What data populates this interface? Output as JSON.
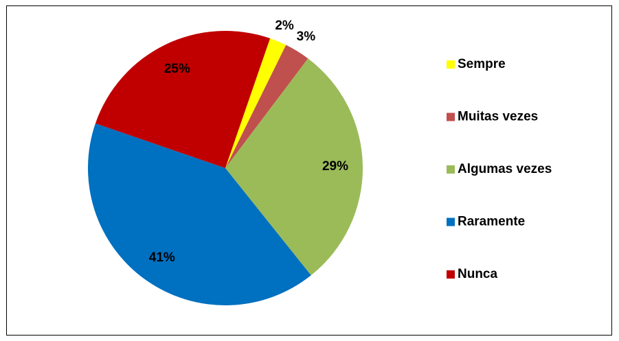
{
  "chart_data": {
    "type": "pie",
    "categories": [
      "Sempre",
      "Muitas vezes",
      "Algumas vezes",
      "Raramente",
      "Nunca"
    ],
    "values": [
      2,
      3,
      29,
      41,
      25
    ],
    "value_labels": [
      "2%",
      "3%",
      "29%",
      "41%",
      "25%"
    ],
    "colors": [
      "#ffff00",
      "#c0504d",
      "#9bbb59",
      "#0070c0",
      "#c00000"
    ],
    "legend": "right"
  }
}
